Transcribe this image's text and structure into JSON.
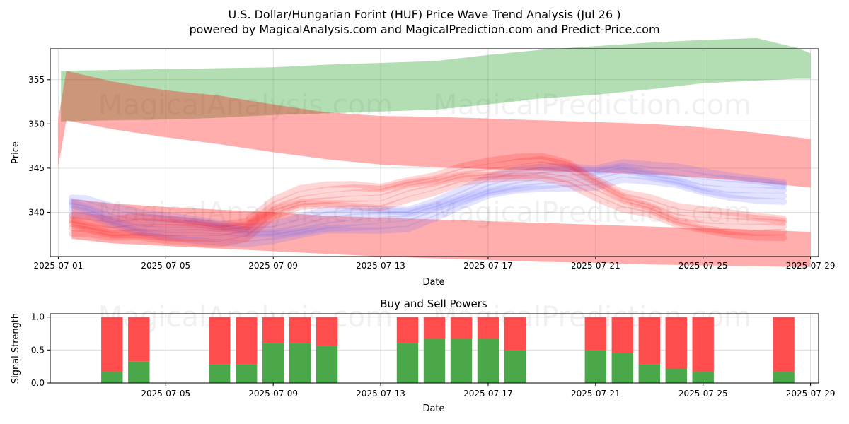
{
  "title_line1": "U.S. Dollar/Hungarian Forint (HUF) Price Wave Trend Analysis (Jul 26 )",
  "title_line2": "powered by MagicalAnalysis.com and MagicalPrediction.com and Predict-Price.com",
  "watermarks": [
    "MagicalAnalysis.com",
    "MagicalPrediction.com"
  ],
  "colors": {
    "green_band": "#2ca02c",
    "red_band": "#ff0000",
    "blue_band": "#6666ff",
    "buy": "#4aa84a",
    "sell": "#ff4c4c"
  },
  "chart_data": [
    {
      "type": "area",
      "title": "",
      "xlabel": "Date",
      "ylabel": "Price",
      "x_ticks": [
        "2025-07-01",
        "2025-07-05",
        "2025-07-09",
        "2025-07-13",
        "2025-07-17",
        "2025-07-21",
        "2025-07-25",
        "2025-07-29"
      ],
      "y_ticks": [
        340,
        345,
        350,
        355
      ],
      "xlim_days": [
        -0.3,
        28.3
      ],
      "ylim": [
        335.0,
        358.5
      ],
      "x_units": "days since 2025-07-01",
      "bands": [
        {
          "name": "green wave",
          "color": "green",
          "opacity": 0.36,
          "x": [
            0.1,
            2,
            4,
            6,
            8,
            10,
            12,
            14,
            16,
            18,
            20,
            22,
            24,
            26,
            27.5,
            28
          ],
          "upper": [
            356.0,
            356.1,
            356.2,
            356.3,
            356.4,
            356.7,
            356.9,
            357.1,
            357.8,
            358.4,
            358.8,
            359.2,
            359.5,
            359.7,
            358.6,
            358.0
          ],
          "lower": [
            350.3,
            350.4,
            350.5,
            350.7,
            351.0,
            351.2,
            351.4,
            351.6,
            352.2,
            352.9,
            353.3,
            353.9,
            354.6,
            354.9,
            355.1,
            355.1
          ]
        },
        {
          "name": "red wave upper",
          "color": "red",
          "opacity": 0.32,
          "x": [
            0,
            0.3,
            2,
            4,
            6,
            8,
            10,
            12,
            14,
            16,
            18,
            20,
            22,
            24,
            26,
            28
          ],
          "upper": [
            350.6,
            356.0,
            354.8,
            353.8,
            353.2,
            352.2,
            351.3,
            350.9,
            350.8,
            350.6,
            350.4,
            350.2,
            350.0,
            349.6,
            349.0,
            348.3
          ],
          "lower": [
            345.2,
            350.4,
            349.4,
            348.5,
            347.7,
            346.8,
            346.0,
            345.4,
            345.1,
            344.9,
            344.7,
            344.5,
            344.3,
            343.9,
            343.4,
            342.8
          ]
        },
        {
          "name": "red wave lower",
          "color": "red",
          "opacity": 0.32,
          "x": [
            0.5,
            2,
            4,
            6,
            8,
            10,
            12,
            14,
            16,
            18,
            20,
            22,
            24,
            26,
            28
          ],
          "upper": [
            341.5,
            341.0,
            340.6,
            340.3,
            340.0,
            339.6,
            339.4,
            339.2,
            339.0,
            338.8,
            338.6,
            338.4,
            338.2,
            338.0,
            337.8
          ],
          "lower": [
            337.0,
            336.5,
            336.2,
            335.9,
            335.6,
            335.3,
            335.0,
            334.8,
            334.6,
            334.4,
            334.3,
            334.1,
            334.0,
            333.9,
            333.8
          ]
        }
      ],
      "wave_lines": {
        "x": [
          0.5,
          1,
          2,
          3,
          4,
          5,
          6,
          7,
          8,
          9,
          10,
          11,
          12,
          13,
          14,
          15,
          16,
          17,
          18,
          19,
          20,
          21,
          22,
          23,
          24,
          25,
          26,
          27
        ],
        "blue": [
          341.0,
          340.8,
          339.7,
          338.9,
          338.6,
          338.4,
          338.1,
          337.7,
          337.9,
          338.5,
          339.2,
          339.4,
          339.5,
          339.6,
          340.6,
          341.8,
          343.0,
          343.7,
          344.1,
          344.3,
          344.3,
          345.0,
          344.6,
          344.2,
          343.5,
          343.1,
          342.9,
          342.7
        ],
        "red": [
          338.7,
          338.5,
          338.0,
          338.2,
          338.0,
          337.9,
          337.7,
          338.1,
          340.4,
          341.5,
          341.8,
          341.9,
          341.8,
          342.7,
          343.3,
          344.2,
          344.6,
          344.9,
          345.1,
          344.5,
          342.9,
          341.4,
          340.7,
          339.5,
          339.0,
          338.7,
          338.5,
          338.4
        ]
      }
    },
    {
      "type": "bar",
      "title": "Buy and Sell Powers",
      "xlabel": "Date",
      "ylabel": "Signal Strength",
      "x_ticks": [
        "2025-07-05",
        "2025-07-09",
        "2025-07-13",
        "2025-07-17",
        "2025-07-21",
        "2025-07-25",
        "2025-07-29"
      ],
      "y_ticks": [
        "0.0",
        "0.5",
        "1.0"
      ],
      "ylim": [
        0,
        1.05
      ],
      "xlim_days": [
        -0.3,
        28.3
      ],
      "x_units": "days since 2025-07-01",
      "series": [
        {
          "name": "Buy",
          "x": [
            2,
            3,
            6,
            7,
            8,
            9,
            10,
            13,
            14,
            15,
            16,
            17,
            20,
            21,
            22,
            23,
            24,
            27
          ],
          "values": [
            0.17,
            0.33,
            0.28,
            0.28,
            0.61,
            0.61,
            0.56,
            0.61,
            0.67,
            0.67,
            0.67,
            0.5,
            0.5,
            0.45,
            0.28,
            0.22,
            0.17,
            0.17
          ]
        },
        {
          "name": "Sell",
          "x": [
            2,
            3,
            6,
            7,
            8,
            9,
            10,
            13,
            14,
            15,
            16,
            17,
            20,
            21,
            22,
            23,
            24,
            27
          ],
          "values": [
            0.83,
            0.67,
            0.72,
            0.72,
            0.39,
            0.39,
            0.44,
            0.39,
            0.33,
            0.33,
            0.33,
            0.5,
            0.5,
            0.55,
            0.72,
            0.78,
            0.83,
            0.83
          ]
        }
      ]
    }
  ]
}
